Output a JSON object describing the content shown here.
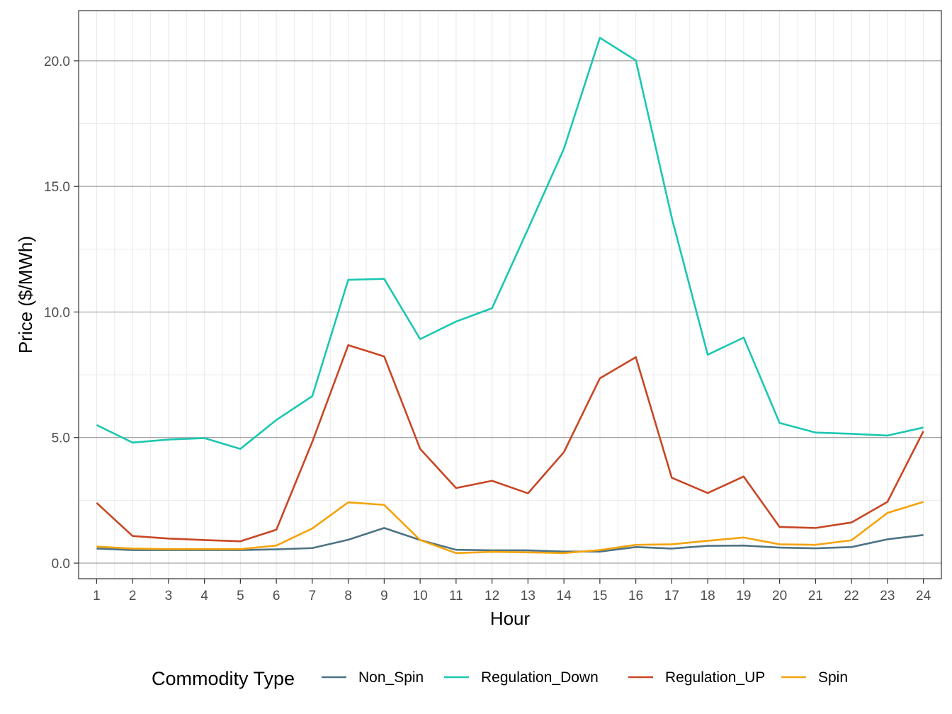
{
  "chart_data": {
    "type": "line",
    "title": "",
    "xlabel": "Hour",
    "ylabel": "Price ($/MWh)",
    "x": [
      1,
      2,
      3,
      4,
      5,
      6,
      7,
      8,
      9,
      10,
      11,
      12,
      13,
      14,
      15,
      16,
      17,
      18,
      19,
      20,
      21,
      22,
      23,
      24
    ],
    "xlim": [
      0.5,
      24.5
    ],
    "ylim": [
      -0.62,
      22.0
    ],
    "yticks": [
      0,
      5,
      10,
      15,
      20
    ],
    "ytick_labels": [
      "0.0",
      "5.0",
      "10.0",
      "15.0",
      "20.0"
    ],
    "grid": true,
    "legend": {
      "title": "Commodity Type",
      "position": "bottom"
    },
    "series": [
      {
        "name": "Non_Spin",
        "color": "#4e7384",
        "values": [
          0.58,
          0.52,
          0.52,
          0.52,
          0.52,
          0.55,
          0.6,
          0.93,
          1.4,
          0.92,
          0.53,
          0.51,
          0.51,
          0.46,
          0.46,
          0.64,
          0.58,
          0.69,
          0.7,
          0.62,
          0.59,
          0.64,
          0.95,
          1.12
        ]
      },
      {
        "name": "Regulation_Down",
        "color": "#1bc7b1",
        "values": [
          5.5,
          4.8,
          4.92,
          4.98,
          4.55,
          5.7,
          6.65,
          11.28,
          11.32,
          8.92,
          9.62,
          10.15,
          13.3,
          16.5,
          20.92,
          20.02,
          13.75,
          8.3,
          8.98,
          5.58,
          5.2,
          5.15,
          5.08,
          5.4
        ]
      },
      {
        "name": "Regulation_UP",
        "color": "#c84624",
        "values": [
          2.4,
          1.08,
          0.98,
          0.92,
          0.87,
          1.33,
          4.83,
          8.68,
          8.23,
          4.55,
          2.99,
          3.28,
          2.78,
          4.42,
          7.36,
          8.2,
          3.4,
          2.79,
          3.45,
          1.44,
          1.4,
          1.62,
          2.44,
          5.25
        ]
      },
      {
        "name": "Spin",
        "color": "#f4a30b",
        "values": [
          0.66,
          0.58,
          0.56,
          0.56,
          0.56,
          0.7,
          1.38,
          2.42,
          2.32,
          0.92,
          0.4,
          0.45,
          0.43,
          0.4,
          0.52,
          0.73,
          0.75,
          0.89,
          1.02,
          0.75,
          0.73,
          0.91,
          2.0,
          2.44
        ]
      }
    ]
  }
}
